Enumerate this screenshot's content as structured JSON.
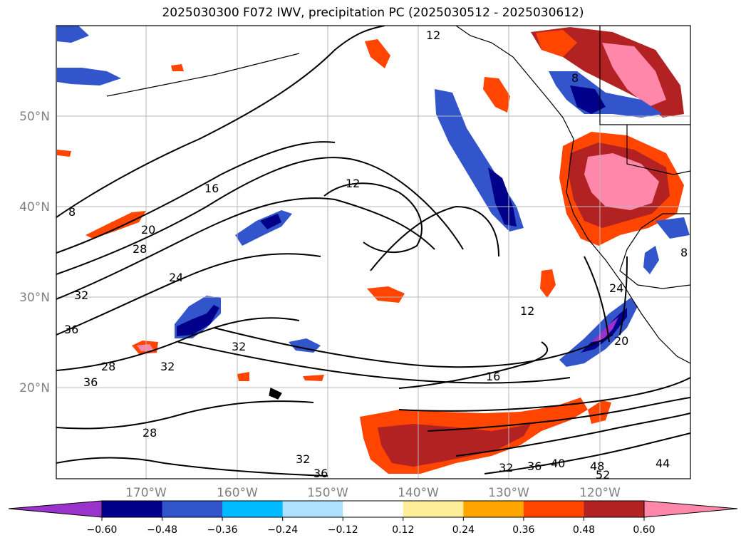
{
  "title": "2025030300 F072 IWV, precipitation PC (2025030512 - 2025030612)",
  "lat_labels": [
    "50°N",
    "40°N",
    "30°N",
    "20°N"
  ],
  "lon_labels": [
    "170°W",
    "160°W",
    "150°W",
    "140°W",
    "130°W",
    "120°W"
  ],
  "colorbar": {
    "colors": [
      "#9933cc",
      "#00008b",
      "#3355cc",
      "#00bbff",
      "#b0e0ff",
      "#ffffff",
      "#ffee99",
      "#ffa500",
      "#ff4500",
      "#b22222",
      "#ff88aa"
    ],
    "tick_labels": [
      "−0.60",
      "−0.48",
      "−0.36",
      "−0.24",
      "−0.12",
      "0.12",
      "0.24",
      "0.36",
      "0.48",
      "0.60"
    ]
  },
  "contour_labels": [
    "12",
    "12",
    "16",
    "20",
    "28",
    "24",
    "32",
    "36",
    "28",
    "32",
    "36",
    "32",
    "28",
    "32",
    "36",
    "32",
    "36",
    "40",
    "48",
    "52",
    "44",
    "12",
    "16",
    "20",
    "24",
    "8",
    "8",
    "8"
  ]
}
